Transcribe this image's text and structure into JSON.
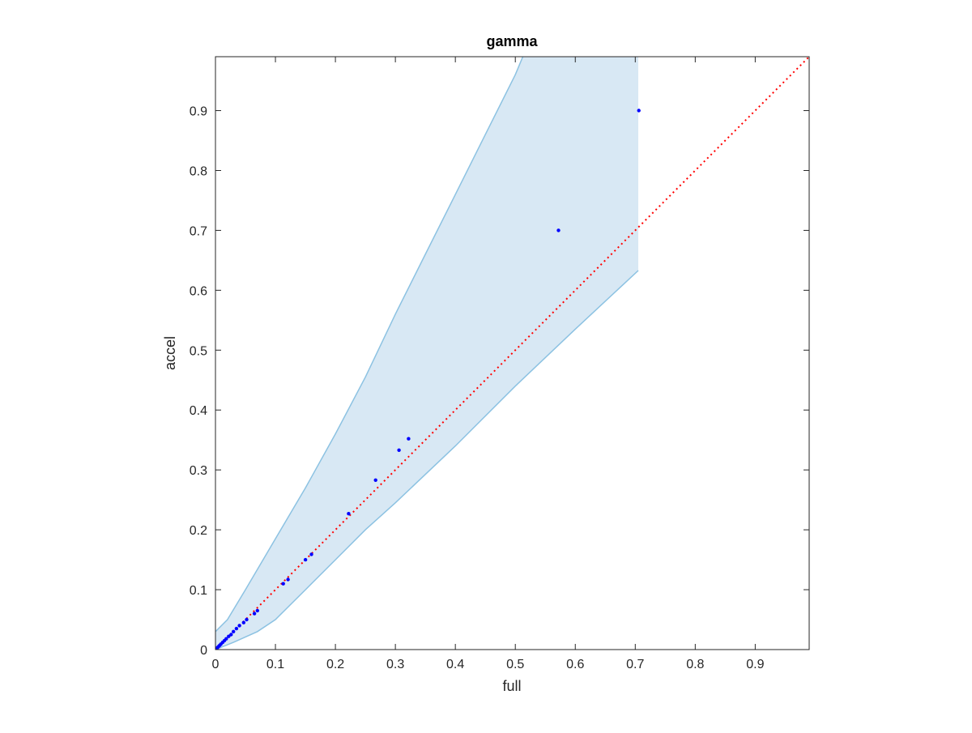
{
  "chart_data": {
    "type": "scatter",
    "title": "gamma",
    "xlabel": "full",
    "ylabel": "accel",
    "xlim": [
      0,
      0.99
    ],
    "ylim": [
      0,
      0.99
    ],
    "xticks": [
      0,
      0.1,
      0.2,
      0.3,
      0.4,
      0.5,
      0.6,
      0.7,
      0.8,
      0.9
    ],
    "yticks": [
      0,
      0.1,
      0.2,
      0.3,
      0.4,
      0.5,
      0.6,
      0.7,
      0.8,
      0.9
    ],
    "xtick_labels": [
      "0",
      "0.1",
      "0.2",
      "0.3",
      "0.4",
      "0.5",
      "0.6",
      "0.7",
      "0.8",
      "0.9"
    ],
    "ytick_labels": [
      "0",
      "0.1",
      "0.2",
      "0.3",
      "0.4",
      "0.5",
      "0.6",
      "0.7",
      "0.8",
      "0.9"
    ],
    "grid": false,
    "legend": null,
    "colors": {
      "points": "#0000ff",
      "reference_line": "#ff0000",
      "band_fill": "#d8e8f4",
      "band_edge": "#8cc2e2",
      "axes": "#262626"
    },
    "reference_line": {
      "style": "dotted",
      "x": [
        0,
        0.99
      ],
      "y": [
        0,
        0.99
      ]
    },
    "band": {
      "upper": {
        "x": [
          0,
          0.02,
          0.05,
          0.1,
          0.15,
          0.2,
          0.25,
          0.3,
          0.35,
          0.4,
          0.45,
          0.5,
          0.55,
          0.6,
          0.605
        ],
        "y": [
          0.03,
          0.05,
          0.1,
          0.185,
          0.27,
          0.36,
          0.455,
          0.56,
          0.66,
          0.76,
          0.86,
          0.96,
          1.08,
          1.26,
          0.99
        ]
      },
      "upper_clipped_x": 0.605,
      "right_edge_x": 0.705,
      "lower": {
        "x": [
          0,
          0.03,
          0.07,
          0.1,
          0.15,
          0.2,
          0.25,
          0.3,
          0.4,
          0.5,
          0.6,
          0.705
        ],
        "y": [
          0,
          0.012,
          0.03,
          0.05,
          0.1,
          0.15,
          0.2,
          0.245,
          0.34,
          0.44,
          0.535,
          0.633
        ]
      }
    },
    "series": [
      {
        "x": [
          0.001,
          0.003,
          0.005,
          0.007,
          0.009,
          0.012,
          0.015,
          0.018,
          0.022,
          0.026,
          0.03,
          0.035,
          0.04,
          0.047,
          0.052,
          0.065,
          0.07,
          0.113,
          0.121,
          0.15,
          0.16,
          0.222,
          0.267,
          0.306,
          0.322,
          0.572,
          0.706
        ],
        "y": [
          0.001,
          0.003,
          0.005,
          0.007,
          0.009,
          0.012,
          0.015,
          0.018,
          0.022,
          0.025,
          0.03,
          0.035,
          0.04,
          0.045,
          0.05,
          0.06,
          0.065,
          0.11,
          0.117,
          0.15,
          0.159,
          0.227,
          0.283,
          0.333,
          0.352,
          0.7,
          0.9
        ]
      }
    ]
  }
}
